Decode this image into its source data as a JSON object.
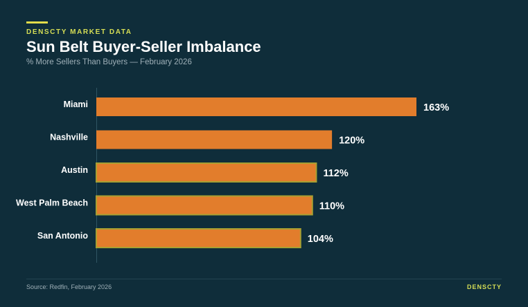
{
  "header": {
    "eyebrow": "DENSCTY MARKET DATA",
    "title": "Sun Belt Buyer-Seller Imbalance",
    "subtitle": "% More Sellers Than Buyers — February 2026"
  },
  "footer": {
    "source": "Source: Redfin, February 2026",
    "brand": "DENSCTY"
  },
  "colors": {
    "background": "#0f2d3a",
    "bar": "#e27d2c",
    "accent": "#d6de55"
  },
  "chart_data": {
    "type": "bar",
    "orientation": "horizontal",
    "title": "Sun Belt Buyer-Seller Imbalance",
    "subtitle": "% More Sellers Than Buyers — February 2026",
    "categories": [
      "Miami",
      "Nashville",
      "Austin",
      "West Palm Beach",
      "San Antonio"
    ],
    "values": [
      163,
      120,
      112,
      110,
      104
    ],
    "labels": [
      "163%",
      "120%",
      "112%",
      "110%",
      "104%"
    ],
    "xlim": [
      0,
      163
    ],
    "grid": false,
    "legend": "none"
  }
}
